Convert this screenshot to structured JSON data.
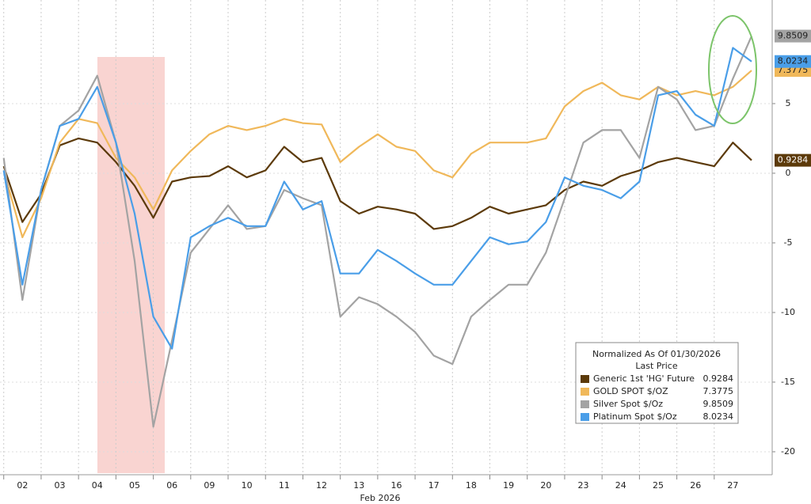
{
  "chart_data": {
    "type": "line",
    "legend_title": "Normalized As Of 01/30/2026",
    "legend_subtitle": "Last Price",
    "xlabel": "Feb 2026",
    "x": [
      0,
      0.5,
      1,
      1.5,
      2,
      2.5,
      3,
      3.5,
      4,
      4.5,
      5,
      5.5,
      6,
      6.5,
      7,
      7.5,
      8,
      8.5,
      9,
      9.5,
      10,
      10.5,
      11,
      11.5,
      12,
      12.5,
      13,
      13.5,
      14,
      14.5,
      15,
      15.5,
      16,
      16.5,
      17,
      17.5,
      18,
      18.5,
      19,
      19.5,
      20
    ],
    "xlim": [
      -0.1,
      20.55
    ],
    "xticks": [
      {
        "value": 0.5,
        "label": "02"
      },
      {
        "value": 1.5,
        "label": "03"
      },
      {
        "value": 2.5,
        "label": "04"
      },
      {
        "value": 3.5,
        "label": "05"
      },
      {
        "value": 4.5,
        "label": "06"
      },
      {
        "value": 5.5,
        "label": "09"
      },
      {
        "value": 6.5,
        "label": "10"
      },
      {
        "value": 7.5,
        "label": "11"
      },
      {
        "value": 8.5,
        "label": "12"
      },
      {
        "value": 9.5,
        "label": "13"
      },
      {
        "value": 10.5,
        "label": "16"
      },
      {
        "value": 11.5,
        "label": "17"
      },
      {
        "value": 12.5,
        "label": "18"
      },
      {
        "value": 13.5,
        "label": "19"
      },
      {
        "value": 14.5,
        "label": "20"
      },
      {
        "value": 15.5,
        "label": "23"
      },
      {
        "value": 16.5,
        "label": "24"
      },
      {
        "value": 17.5,
        "label": "25"
      },
      {
        "value": 18.5,
        "label": "26"
      },
      {
        "value": 19.5,
        "label": "27"
      }
    ],
    "ylim": [
      -21.65,
      12.44
    ],
    "yticks": [
      5,
      0,
      -5,
      -10,
      -15,
      -20
    ],
    "grid": true,
    "series": [
      {
        "name": "Generic 1st 'HG' Future",
        "color": "#5c3a0a",
        "last": 0.9284,
        "values": [
          0.5,
          -3.5,
          -1.5,
          2,
          2.5,
          2.2,
          0.8,
          -0.9,
          -3.2,
          -0.6,
          -0.3,
          -0.2,
          0.5,
          -0.3,
          0.2,
          1.9,
          0.8,
          1.1,
          -2,
          -2.9,
          -2.4,
          -2.6,
          -2.9,
          -4,
          -3.8,
          -3.2,
          -2.4,
          -2.9,
          -2.6,
          -2.3,
          -1.2,
          -0.6,
          -0.9,
          -0.2,
          0.2,
          0.8,
          1.1,
          0.8,
          0.5,
          2.2,
          0.93
        ]
      },
      {
        "name": "GOLD SPOT $/OZ",
        "color": "#f0b85a",
        "last": 7.3775,
        "values": [
          0.2,
          -4.6,
          -1.8,
          2.2,
          3.9,
          3.6,
          1.1,
          -0.3,
          -2.6,
          0.2,
          1.6,
          2.8,
          3.4,
          3.1,
          3.4,
          3.9,
          3.6,
          3.5,
          0.8,
          1.9,
          2.8,
          1.9,
          1.6,
          0.2,
          -0.3,
          1.4,
          2.2,
          2.2,
          2.2,
          2.5,
          4.8,
          5.9,
          6.5,
          5.6,
          5.3,
          6.2,
          5.6,
          5.9,
          5.6,
          6.2,
          7.38
        ]
      },
      {
        "name": "Silver Spot $/Oz",
        "color": "#a3a3a3",
        "last": 9.8509,
        "values": [
          1.1,
          -9.1,
          -1.2,
          3.4,
          4.5,
          7,
          2.2,
          -6.3,
          -18.2,
          -12,
          -5.7,
          -4,
          -2.3,
          -4,
          -3.8,
          -1.2,
          -1.8,
          -2.3,
          -10.3,
          -8.9,
          -9.4,
          -10.3,
          -11.4,
          -13.1,
          -13.7,
          -10.3,
          -9.1,
          -8,
          -8,
          -5.7,
          -1.8,
          2.2,
          3.1,
          3.1,
          1.1,
          6.2,
          5.3,
          3.1,
          3.4,
          6.8,
          9.85
        ]
      },
      {
        "name": "Platinum Spot $/Oz",
        "color": "#4a9ee8",
        "last": 8.0234,
        "values": [
          0.2,
          -8,
          -1.2,
          3.4,
          3.9,
          6.2,
          2.2,
          -2.9,
          -10.3,
          -12.6,
          -4.6,
          -3.8,
          -3.2,
          -3.8,
          -3.8,
          -0.6,
          -2.6,
          -2,
          -7.2,
          -7.2,
          -5.5,
          -6.3,
          -7.2,
          -8,
          -8,
          -6.3,
          -4.6,
          -5.1,
          -4.9,
          -3.5,
          -0.3,
          -0.9,
          -1.2,
          -1.8,
          -0.6,
          5.6,
          5.9,
          4.2,
          3.4,
          9,
          8.02
        ]
      }
    ]
  }
}
